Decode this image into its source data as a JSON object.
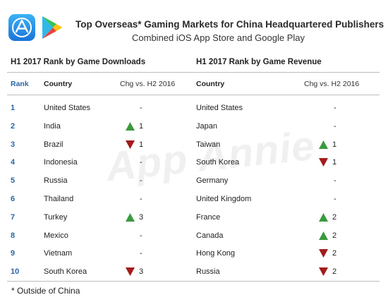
{
  "header": {
    "title": "Top Overseas* Gaming Markets for China Headquartered Publishers",
    "subtitle": "Combined iOS App Store and Google Play",
    "icons": [
      "app-store-icon",
      "google-play-icon"
    ]
  },
  "watermark": "App Annie",
  "left_table": {
    "section_title": "H1 2017 Rank by Game Downloads",
    "headers": {
      "rank": "Rank",
      "country": "Country",
      "change": "Chg vs. H2 2016"
    }
  },
  "right_table": {
    "section_title": "H1 2017 Rank by Game Revenue",
    "headers": {
      "country": "Country",
      "change": "Chg vs. H2 2016"
    }
  },
  "rows": [
    {
      "rank": "1",
      "dl_country": "United States",
      "dl_dir": "none",
      "dl_chg": "-",
      "rev_country": "United States",
      "rev_dir": "none",
      "rev_chg": "-"
    },
    {
      "rank": "2",
      "dl_country": "India",
      "dl_dir": "up",
      "dl_chg": "1",
      "rev_country": "Japan",
      "rev_dir": "none",
      "rev_chg": "-"
    },
    {
      "rank": "3",
      "dl_country": "Brazil",
      "dl_dir": "down",
      "dl_chg": "1",
      "rev_country": "Taiwan",
      "rev_dir": "up",
      "rev_chg": "1"
    },
    {
      "rank": "4",
      "dl_country": "Indonesia",
      "dl_dir": "none",
      "dl_chg": "-",
      "rev_country": "South Korea",
      "rev_dir": "down",
      "rev_chg": "1"
    },
    {
      "rank": "5",
      "dl_country": "Russia",
      "dl_dir": "none",
      "dl_chg": "-",
      "rev_country": "Germany",
      "rev_dir": "none",
      "rev_chg": "-"
    },
    {
      "rank": "6",
      "dl_country": "Thailand",
      "dl_dir": "none",
      "dl_chg": "-",
      "rev_country": "United Kingdom",
      "rev_dir": "none",
      "rev_chg": "-"
    },
    {
      "rank": "7",
      "dl_country": "Turkey",
      "dl_dir": "up",
      "dl_chg": "3",
      "rev_country": "France",
      "rev_dir": "up",
      "rev_chg": "2"
    },
    {
      "rank": "8",
      "dl_country": "Mexico",
      "dl_dir": "none",
      "dl_chg": "-",
      "rev_country": "Canada",
      "rev_dir": "up",
      "rev_chg": "2"
    },
    {
      "rank": "9",
      "dl_country": "Vietnam",
      "dl_dir": "none",
      "dl_chg": "-",
      "rev_country": "Hong Kong",
      "rev_dir": "down",
      "rev_chg": "2"
    },
    {
      "rank": "10",
      "dl_country": "South Korea",
      "dl_dir": "down",
      "dl_chg": "3",
      "rev_country": "Russia",
      "rev_dir": "down",
      "rev_chg": "2"
    }
  ],
  "colors": {
    "up": "#3a9a3e",
    "down": "#a31b1b",
    "rank": "#2c66a8"
  },
  "footnote": "* Outside of China"
}
